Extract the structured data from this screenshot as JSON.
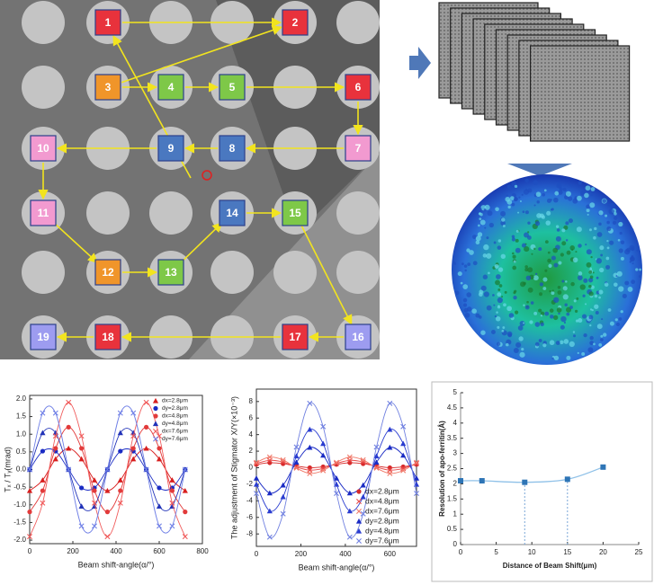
{
  "diagram": {
    "nodes": [
      {
        "label": "1"
      },
      {
        "label": "2"
      },
      {
        "label": "3"
      },
      {
        "label": "4"
      },
      {
        "label": "5"
      },
      {
        "label": "6"
      },
      {
        "label": "7"
      },
      {
        "label": "8"
      },
      {
        "label": "9"
      },
      {
        "label": "10"
      },
      {
        "label": "11"
      },
      {
        "label": "12"
      },
      {
        "label": "13"
      },
      {
        "label": "14"
      },
      {
        "label": "15"
      },
      {
        "label": "16"
      },
      {
        "label": "17"
      },
      {
        "label": "18"
      },
      {
        "label": "19"
      }
    ]
  },
  "chart_data": [
    {
      "type": "line",
      "x_label": "Beam shift-angle(α/°)",
      "y_label": "Tₓ / Tᵧ(mrad)",
      "legend": "upper right",
      "x": [
        0,
        60,
        120,
        180,
        240,
        300,
        360,
        420,
        480,
        540,
        600,
        660,
        720
      ],
      "xlim": [
        0,
        800
      ],
      "xticks": [
        0,
        200,
        400,
        600,
        800
      ],
      "ylim": [
        -2.1,
        2.1
      ],
      "yticks": [
        {
          "value": -2,
          "label": "-2.0"
        },
        {
          "value": -1.5,
          "label": "-1.5"
        },
        {
          "value": -1,
          "label": "-1.0"
        },
        {
          "value": -0.5,
          "label": "-0.5"
        },
        {
          "value": 0,
          "label": "0.0"
        },
        {
          "value": 0.5,
          "label": "0.5"
        },
        {
          "value": 1,
          "label": "1.0"
        },
        {
          "value": 1.5,
          "label": "1.5"
        },
        {
          "value": 2,
          "label": "2.0"
        }
      ],
      "series": [
        {
          "name": "dx=2.8μm",
          "color": "#d81e1e",
          "marker": "triangle",
          "values": [
            -0.6,
            -0.3,
            0.3,
            0.6,
            0.3,
            -0.3,
            -0.6,
            -0.3,
            0.3,
            0.6,
            0.3,
            -0.3,
            -0.6
          ]
        },
        {
          "name": "dy=2.8μm",
          "color": "#1a2bc4",
          "marker": "circle",
          "values": [
            0,
            0.52,
            0.52,
            0,
            -0.52,
            -0.52,
            0,
            0.52,
            0.52,
            0,
            -0.52,
            -0.52,
            0
          ]
        },
        {
          "name": "dx=4.8μm",
          "color": "#e23a3a",
          "marker": "circle",
          "values": [
            -1.2,
            -0.6,
            0.6,
            1.2,
            0.6,
            -0.6,
            -1.2,
            -0.6,
            0.6,
            1.2,
            0.6,
            -0.6,
            -1.2
          ]
        },
        {
          "name": "dy=4.8μm",
          "color": "#2233b8",
          "marker": "triangle",
          "values": [
            0,
            1.04,
            1.04,
            0,
            -1.04,
            -1.04,
            0,
            1.04,
            1.04,
            0,
            -1.04,
            -1.04,
            0
          ]
        },
        {
          "name": "dx=7.6μm",
          "color": "#f05a5a",
          "marker": "x",
          "values": [
            -1.9,
            -0.95,
            0.95,
            1.9,
            0.95,
            -0.95,
            -1.9,
            -0.95,
            0.95,
            1.9,
            0.95,
            -0.95,
            -1.9
          ]
        },
        {
          "name": "dy=7.6μm",
          "color": "#6f7fe6",
          "marker": "x",
          "values": [
            0,
            1.6,
            1.6,
            0,
            -1.6,
            -1.6,
            0,
            1.6,
            1.6,
            0,
            -1.6,
            -1.6,
            0
          ]
        }
      ]
    },
    {
      "type": "line",
      "x_label": "Beam shift-angle(α/°)",
      "y_label": "The adjustment of Stigmator X/Y(×10⁻³)",
      "legend": "lower right",
      "x": [
        0,
        60,
        120,
        180,
        240,
        300,
        360,
        420,
        480,
        540,
        600,
        660,
        720
      ],
      "xlim": [
        0,
        720
      ],
      "xticks": [
        0,
        200,
        400,
        600
      ],
      "ylim": [
        -9.5,
        9.5
      ],
      "yticks": [
        -8,
        -6,
        -4,
        -2,
        0,
        2,
        4,
        6,
        8
      ],
      "series": [
        {
          "name": "dx=2.8μm",
          "color": "#d62a2a",
          "marker": "circle",
          "values": [
            0.4,
            0.6,
            0.49,
            0.2,
            0,
            0.11,
            0.4,
            0.6,
            0.49,
            0.2,
            0,
            0.11,
            0.4
          ]
        },
        {
          "name": "dx=4.8μm",
          "color": "#e84848",
          "marker": "x",
          "values": [
            0.51,
            0.89,
            0.69,
            0.09,
            -0.29,
            -0.09,
            0.51,
            0.89,
            0.69,
            0.09,
            -0.29,
            -0.09,
            0.51
          ]
        },
        {
          "name": "dx=7.6μm",
          "color": "#f07a6a",
          "marker": "x",
          "values": [
            0.64,
            1.29,
            0.94,
            -0.04,
            -0.69,
            -0.34,
            0.64,
            1.29,
            0.94,
            -0.04,
            -0.69,
            -0.34,
            0.64
          ]
        },
        {
          "name": "dy=2.8μm",
          "color": "#1a2bc4",
          "marker": "triangle",
          "values": [
            -1.26,
            -3.06,
            -2.1,
            0.66,
            2.46,
            1.5,
            -1.26,
            -3.06,
            -2.1,
            0.66,
            2.46,
            1.5,
            -1.26
          ]
        },
        {
          "name": "dy=4.8μm",
          "color": "#2a3cd0",
          "marker": "triangle",
          "values": [
            -2.01,
            -5.23,
            -3.52,
            1.41,
            4.63,
            2.92,
            -2.01,
            -5.23,
            -3.52,
            1.41,
            4.63,
            2.92,
            -2.01
          ]
        },
        {
          "name": "dy=7.6μm",
          "color": "#7080e0",
          "marker": "x",
          "values": [
            -3.1,
            -8.38,
            -5.57,
            2.5,
            7.78,
            4.97,
            -3.1,
            -8.38,
            -5.57,
            2.5,
            7.78,
            4.97,
            -3.1
          ]
        }
      ]
    },
    {
      "type": "line",
      "x_label": "Distance of Beam Shift(μm)",
      "y_label": "Resolution of apo-ferritin(Å)",
      "x": [
        0,
        3,
        9,
        15,
        20
      ],
      "xlim": [
        0,
        25
      ],
      "xticks": [
        0,
        5,
        10,
        15,
        20,
        25
      ],
      "ylim": [
        0,
        5
      ],
      "yticks": [
        0,
        0.5,
        1,
        1.5,
        2,
        2.5,
        3,
        3.5,
        4,
        4.5,
        5
      ],
      "droplines": [
        9,
        15
      ],
      "series": [
        {
          "color": "#2e75b6",
          "marker": "square",
          "values": [
            2.1,
            2.1,
            2.05,
            2.15,
            2.55
          ]
        }
      ]
    }
  ]
}
